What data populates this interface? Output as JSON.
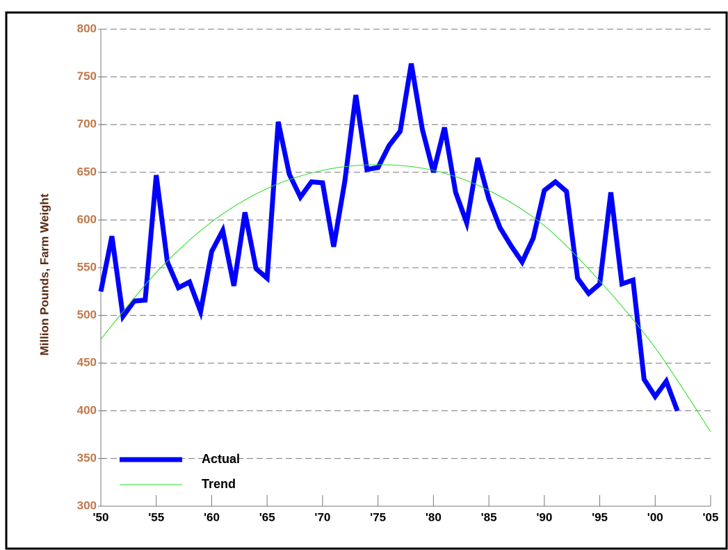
{
  "chart_data": {
    "type": "line",
    "y_label": "Million Pounds, Farm Weight",
    "series": [
      {
        "name": "Actual",
        "color": "#0000ff",
        "x": [
          1950,
          1951,
          1952,
          1953,
          1954,
          1955,
          1956,
          1957,
          1958,
          1959,
          1960,
          1961,
          1962,
          1963,
          1964,
          1965,
          1966,
          1967,
          1968,
          1969,
          1970,
          1971,
          1972,
          1973,
          1974,
          1975,
          1976,
          1977,
          1978,
          1979,
          1980,
          1981,
          1982,
          1983,
          1984,
          1985,
          1986,
          1987,
          1988,
          1989,
          1990,
          1991,
          1992,
          1993,
          1994,
          1995,
          1996,
          1997,
          1998,
          1999,
          2000,
          2001,
          2002
        ],
        "values": [
          525,
          583,
          499,
          515,
          516,
          647,
          556,
          529,
          535,
          504,
          567,
          589,
          531,
          608,
          549,
          539,
          703,
          648,
          624,
          640,
          639,
          572,
          640,
          731,
          653,
          655,
          678,
          693,
          764,
          695,
          650,
          697,
          629,
          597,
          665,
          622,
          592,
          573,
          556,
          581,
          631,
          640,
          630,
          539,
          523,
          533,
          629,
          533,
          537,
          433,
          415,
          431,
          400
        ]
      },
      {
        "name": "Trend",
        "color": "#22dd22",
        "x": [
          1950,
          1955,
          1960,
          1965,
          1970,
          1975,
          1980,
          1985,
          1990,
          1995,
          2000,
          2005
        ],
        "values": [
          475,
          545,
          598,
          633,
          652,
          658,
          652,
          631,
          594,
          536,
          466,
          378
        ]
      }
    ],
    "xlim": [
      1950,
      2005
    ],
    "xticks": [
      {
        "value": 1950,
        "label": "'50"
      },
      {
        "value": 1955,
        "label": "'55"
      },
      {
        "value": 1960,
        "label": "'60"
      },
      {
        "value": 1965,
        "label": "'65"
      },
      {
        "value": 1970,
        "label": "'70"
      },
      {
        "value": 1975,
        "label": "'75"
      },
      {
        "value": 1980,
        "label": "'80"
      },
      {
        "value": 1985,
        "label": "'85"
      },
      {
        "value": 1990,
        "label": "'90"
      },
      {
        "value": 1995,
        "label": "'95"
      },
      {
        "value": 2000,
        "label": "'00"
      },
      {
        "value": 2005,
        "label": "'05"
      }
    ],
    "ylim": [
      300,
      800
    ],
    "yticks": [
      300,
      350,
      400,
      450,
      500,
      550,
      600,
      650,
      700,
      750,
      800
    ],
    "grid": true,
    "legend": "lower left"
  }
}
